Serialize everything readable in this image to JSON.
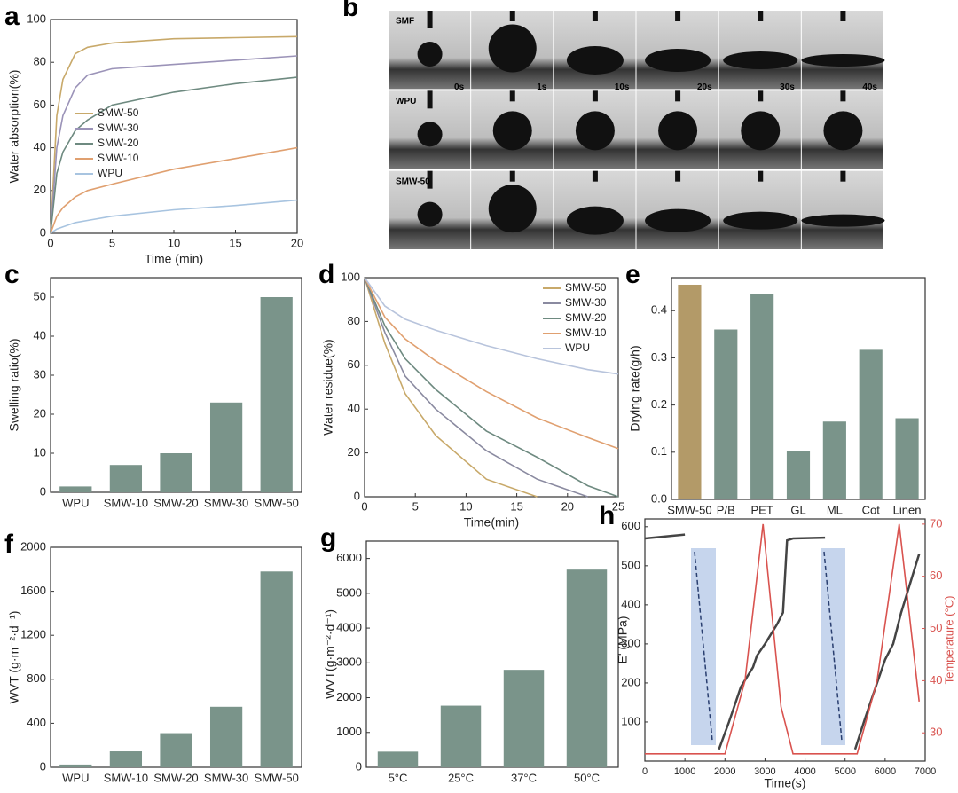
{
  "chart_data": [
    {
      "label": "a",
      "type": "line",
      "xlabel": "Time (min)",
      "ylabel": "Water absorption(%)",
      "x": [
        0,
        0.5,
        1,
        2,
        3,
        5,
        10,
        15,
        20
      ],
      "series": [
        {
          "name": "SMW-50",
          "color": "#c8a96a",
          "values": [
            0,
            55,
            72,
            84,
            87,
            89,
            91,
            91.5,
            92
          ]
        },
        {
          "name": "SMW-30",
          "color": "#9b93b8",
          "values": [
            0,
            40,
            55,
            68,
            74,
            77,
            79,
            81,
            83
          ]
        },
        {
          "name": "SMW-20",
          "color": "#6e8a80",
          "values": [
            0,
            28,
            38,
            48,
            53,
            60,
            66,
            70,
            73
          ]
        },
        {
          "name": "SMW-10",
          "color": "#e0a070",
          "values": [
            0,
            8,
            12,
            17,
            20,
            23,
            30,
            35,
            40
          ]
        },
        {
          "name": "WPU",
          "color": "#a8c4e0",
          "values": [
            0,
            2,
            3,
            5,
            6,
            8,
            11,
            13,
            15.5
          ]
        }
      ],
      "xlim": [
        0,
        20
      ],
      "xticks": [
        0,
        5,
        10,
        15,
        20
      ],
      "ylim": [
        0,
        100
      ],
      "yticks": [
        0,
        20,
        40,
        60,
        80,
        100
      ],
      "legend": "center left"
    },
    {
      "label": "b",
      "type": "image",
      "rows": [
        "SMF",
        "WPU",
        "SMW-50"
      ],
      "times": [
        "0s",
        "1s",
        "10s",
        "20s",
        "30s",
        "40s"
      ]
    },
    {
      "label": "c",
      "type": "bar",
      "ylabel": "Swelling ratio(%)",
      "categories": [
        "WPU",
        "SMW-10",
        "SMW-20",
        "SMW-30",
        "SMW-50"
      ],
      "values": [
        1.5,
        7,
        10,
        23,
        50
      ],
      "color": "#7a948a",
      "ylim": [
        0,
        55
      ],
      "yticks": [
        0,
        10,
        20,
        30,
        40,
        50
      ]
    },
    {
      "label": "d",
      "type": "line",
      "xlabel": "Time(min)",
      "ylabel": "Water residue(%)",
      "x": [
        0,
        2,
        4,
        7,
        12,
        17,
        22,
        25
      ],
      "series": [
        {
          "name": "SMW-50",
          "color": "#c8a96a",
          "values": [
            100,
            70,
            47,
            28,
            8,
            0,
            null,
            null
          ]
        },
        {
          "name": "SMW-30",
          "color": "#8a8aa0",
          "values": [
            100,
            75,
            55,
            40,
            21,
            8,
            0,
            null
          ]
        },
        {
          "name": "SMW-20",
          "color": "#6e8a80",
          "values": [
            100,
            78,
            63,
            49,
            30,
            18,
            5,
            0
          ]
        },
        {
          "name": "SMW-10",
          "color": "#e0a070",
          "values": [
            100,
            82,
            72,
            62,
            48,
            36,
            27,
            22
          ]
        },
        {
          "name": "WPU",
          "color": "#b8c4dc",
          "values": [
            100,
            87,
            81,
            76,
            69,
            63,
            58,
            56
          ]
        }
      ],
      "xlim": [
        0,
        25
      ],
      "xticks": [
        0,
        5,
        10,
        15,
        20,
        25
      ],
      "ylim": [
        0,
        100
      ],
      "yticks": [
        0,
        20,
        40,
        60,
        80,
        100
      ],
      "legend": "upper right"
    },
    {
      "label": "e",
      "type": "bar",
      "ylabel": "Drying rate(g/h)",
      "categories": [
        "SMW-50",
        "P/B",
        "PET",
        "GL",
        "ML",
        "Cot",
        "Linen"
      ],
      "values": [
        0.455,
        0.36,
        0.435,
        0.103,
        0.165,
        0.317,
        0.172
      ],
      "colors": [
        "#b39a68",
        "#7a948a",
        "#7a948a",
        "#7a948a",
        "#7a948a",
        "#7a948a",
        "#7a948a"
      ],
      "ylim": [
        0,
        0.47
      ],
      "yticks": [
        {
          "value": 0,
          "label": "0.0"
        },
        0.1,
        0.2,
        0.3,
        0.4
      ]
    },
    {
      "label": "f",
      "type": "bar",
      "ylabel": "WVT (g·m⁻²·d⁻¹)",
      "categories": [
        "WPU",
        "SMW-10",
        "SMW-20",
        "SMW-30",
        "SMW-50"
      ],
      "values": [
        25,
        145,
        310,
        550,
        1780
      ],
      "color": "#7a948a",
      "ylim": [
        0,
        2000
      ],
      "yticks": [
        0,
        400,
        800,
        1200,
        1600,
        2000
      ]
    },
    {
      "label": "g",
      "type": "bar",
      "ylabel": "WVT(g·m⁻²·d⁻¹)",
      "categories": [
        "5°C",
        "25°C",
        "37°C",
        "50°C"
      ],
      "values": [
        450,
        1770,
        2800,
        5680
      ],
      "color": "#7a948a",
      "ylim": [
        0,
        6500
      ],
      "yticks": [
        0,
        1000,
        2000,
        3000,
        4000,
        5000,
        6000
      ]
    },
    {
      "label": "h",
      "type": "line",
      "xlabel": "Time(s)",
      "ylabel": "E' (MPa)",
      "y2label": "Temperature (°C)",
      "series": [
        {
          "name": "E'",
          "color": "#444444",
          "x": [
            0,
            1000,
            1500,
            1850,
            2100,
            2400,
            2700,
            2800,
            3000,
            3300,
            3450,
            3550,
            3700,
            4500,
            4900,
            5250,
            5500,
            5800,
            6000,
            6200,
            6400,
            6850
          ],
          "values": [
            570,
            580,
            null,
            30,
            100,
            190,
            240,
            270,
            300,
            350,
            380,
            565,
            570,
            572,
            null,
            30,
            110,
            200,
            260,
            300,
            380,
            530
          ]
        },
        {
          "name": "Temperature",
          "color": "#d9534f",
          "axis": "y2",
          "x": [
            0,
            1000,
            2000,
            2500,
            2950,
            3400,
            3700,
            4500,
            5300,
            5800,
            6350,
            6850
          ],
          "values": [
            26,
            26,
            26,
            40,
            70,
            35,
            26,
            26,
            26,
            40,
            70,
            36
          ]
        }
      ],
      "xlim": [
        0,
        7000
      ],
      "xticks": [
        0,
        1000,
        2000,
        3000,
        4000,
        5000,
        6000,
        7000
      ],
      "ylim": [
        0,
        620
      ],
      "yticks": [
        100,
        200,
        300,
        400,
        500,
        600
      ],
      "y2lim": [
        24.6,
        71
      ],
      "y2ticks": [
        30,
        40,
        50,
        60,
        70
      ]
    }
  ]
}
